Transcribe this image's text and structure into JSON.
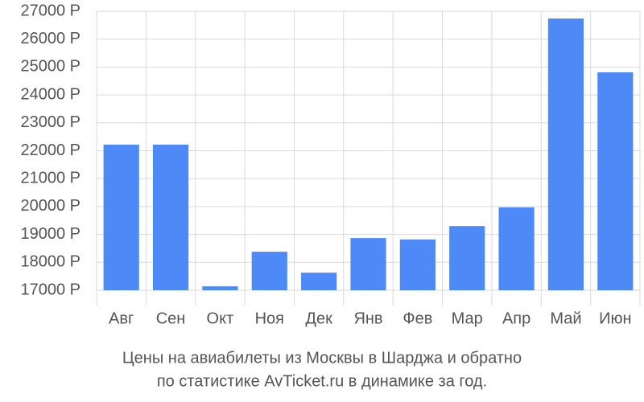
{
  "chart_data": {
    "type": "bar",
    "title": [
      "Цены на авиабилеты из Москвы в Шарджа и обратно",
      "по статистике AvTicket.ru в динамике за год."
    ],
    "categories": [
      "Авг",
      "Сен",
      "Окт",
      "Ноя",
      "Дек",
      "Янв",
      "Фев",
      "Мар",
      "Апр",
      "Май",
      "Июн"
    ],
    "values": [
      22220,
      22220,
      17140,
      18380,
      17630,
      18870,
      18820,
      19300,
      19970,
      26740,
      24810
    ],
    "color": "#4d8af7",
    "ylim": [
      17000,
      27000
    ],
    "yticks": [
      {
        "value": 17000,
        "label": "17000 Р"
      },
      {
        "value": 18000,
        "label": "18000 Р"
      },
      {
        "value": 19000,
        "label": "19000 Р"
      },
      {
        "value": 20000,
        "label": "20000 Р"
      },
      {
        "value": 21000,
        "label": "21000 Р"
      },
      {
        "value": 22000,
        "label": "22000 Р"
      },
      {
        "value": 23000,
        "label": "23000 Р"
      },
      {
        "value": 24000,
        "label": "24000 Р"
      },
      {
        "value": 25000,
        "label": "25000 Р"
      },
      {
        "value": 26000,
        "label": "26000 Р"
      },
      {
        "value": 27000,
        "label": "27000 Р"
      }
    ],
    "grid": true
  }
}
